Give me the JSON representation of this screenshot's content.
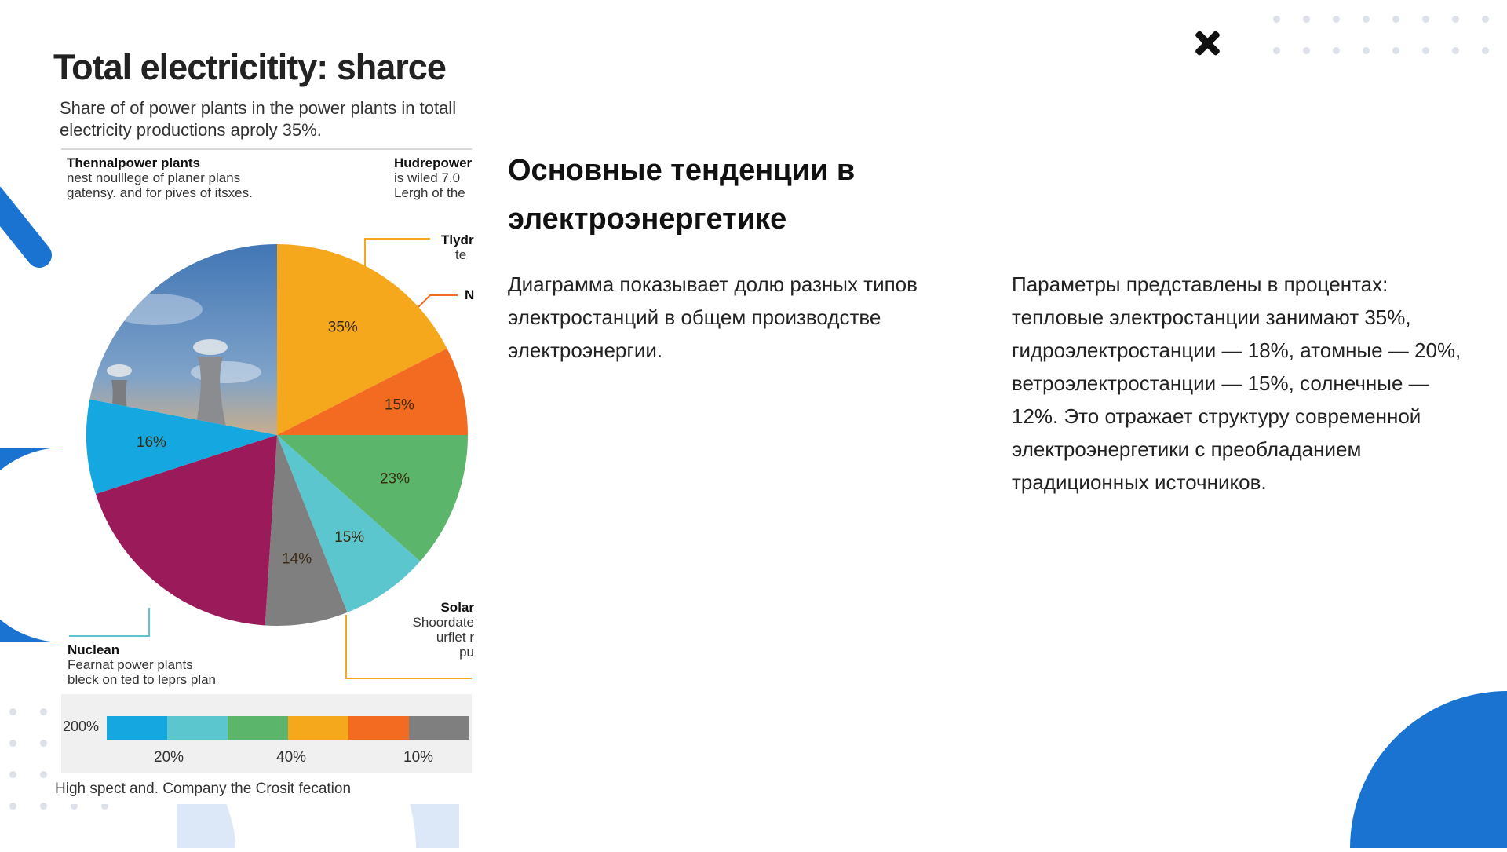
{
  "slide": {
    "heading": "Основные тенденции в электроэнергетике",
    "left_text": "Диаграмма показывает долю разных типов электростанций в общем производстве электроэнергии.",
    "right_text": "Параметры представлены в процентах: тепловые электростанции занимают 35%, гидроэлектростанции — 18%, атомные — 20%, ветроэлектростанции — 15%, солнечные — 12%. Это отражает структуру современной электроэнергетики с преобладанием традиционных источников."
  },
  "infographic": {
    "title": "Total electricitity: sharce",
    "subtitle": "Share of of power plants in the power plants in totall electricity productions aproly 35%.",
    "callouts": {
      "thermal": {
        "title": "Thennalpower plants",
        "line1": "nest noulllege of planer plans",
        "line2": "gatensy. and for pives of itsxes."
      },
      "hydro": {
        "title": "Hudrepower",
        "line1": "is wiled 7.0",
        "line2": "Lergh of the"
      },
      "hydro_small": {
        "title": "Tlydr",
        "line1": "te"
      },
      "n_label": {
        "title": "N"
      },
      "solar": {
        "title": "Solar",
        "line1": "Shoordate",
        "line2": "urflet r",
        "line3": "pu"
      },
      "nuclear": {
        "title": "Nuclean",
        "line1": "Fearnat power plants",
        "line2": "bleck on ted to leprs plan"
      }
    },
    "footer": "High spect and. Company the Crosit fecation"
  },
  "chart_data": {
    "type": "pie",
    "title": "Total electricitity: sharce",
    "slices": [
      {
        "label": "35%",
        "value": 35,
        "color": "#F5A81C"
      },
      {
        "label": "15%",
        "value": 15,
        "color": "#F26B21"
      },
      {
        "label": "23%",
        "value": 23,
        "color": "#5BB56A"
      },
      {
        "label": "15%",
        "value": 15,
        "color": "#5CC6CE"
      },
      {
        "label": "14%",
        "value": 14,
        "color": "#7F7F7F"
      },
      {
        "label": "",
        "value": 38,
        "color": "#9B1B5A"
      },
      {
        "label": "16%",
        "value": 16,
        "color": "#14A7E0"
      },
      {
        "label": "",
        "value": 44,
        "color": "photo"
      }
    ],
    "legend_bar": {
      "left_label": "200%",
      "colors": [
        "#14A7E0",
        "#5CC6CE",
        "#5BB56A",
        "#F5A81C",
        "#F26B21",
        "#7F7F7F"
      ],
      "tick_labels": [
        "20%",
        "40%",
        "10%"
      ]
    }
  },
  "colors": {
    "accent_blue": "#1565C0",
    "light_blue": "#DCE8F8"
  }
}
